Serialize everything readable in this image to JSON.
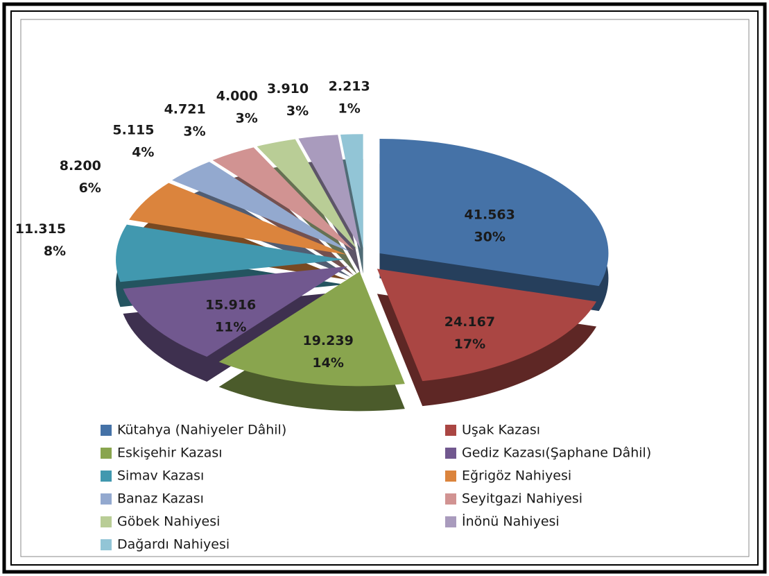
{
  "chart_data": {
    "type": "pie",
    "categories": [
      "Kütahya (Nahiyeler Dâhil)",
      "Uşak Kazası",
      "Eskişehir Kazası",
      "Gediz Kazası(Şaphane Dâhil)",
      "Simav Kazası",
      "Eğrigöz Nahiyesi",
      "Banaz Kazası",
      "Seyitgazi Nahiyesi",
      "Göbek Nahiyesi",
      "İnönü Nahiyesi",
      "Dağardı Nahiyesi"
    ],
    "values": [
      41563,
      24167,
      19239,
      15916,
      11315,
      8200,
      5115,
      4721,
      4000,
      3910,
      2213
    ],
    "value_labels": [
      "41.563",
      "24.167",
      "19.239",
      "15.916",
      "11.315",
      "8.200",
      "5.115",
      "4.721",
      "4.000",
      "3.910",
      "2.213"
    ],
    "percent_labels": [
      "30%",
      "17%",
      "14%",
      "11%",
      "8%",
      "6%",
      "4%",
      "3%",
      "3%",
      "3%",
      "1%"
    ],
    "colors": [
      "#4572a7",
      "#aa4643",
      "#89a54e",
      "#71588f",
      "#4198af",
      "#db843d",
      "#93a9cf",
      "#d19392",
      "#b9cd96",
      "#a99bbd",
      "#92c5d6"
    ],
    "legend": "bottom"
  }
}
